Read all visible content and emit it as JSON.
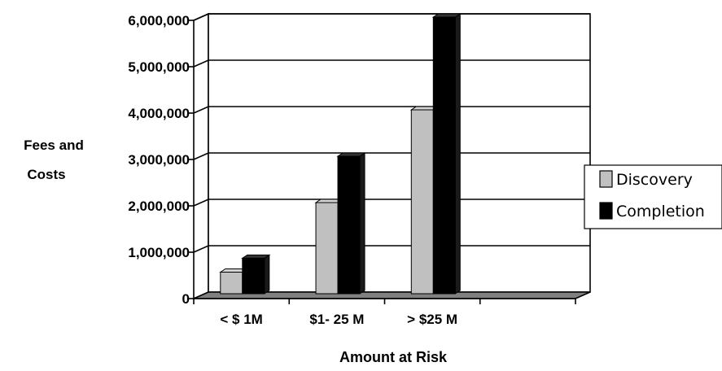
{
  "chart_data": {
    "type": "bar",
    "categories": [
      "< $ 1M",
      "$1- 25 M",
      "> $25 M",
      ""
    ],
    "series": [
      {
        "name": "Discovery",
        "values": [
          500000,
          2000000,
          4000000,
          null
        ],
        "color": "#c0c0c0"
      },
      {
        "name": "Completion",
        "values": [
          800000,
          3000000,
          6000000,
          null
        ],
        "color": "#000000"
      }
    ],
    "ylim": [
      0,
      6000000
    ],
    "yticks": [
      "0",
      "1,000,000",
      "2,000,000",
      "3,000,000",
      "4,000,000",
      "5,000,000",
      "6,000,000"
    ],
    "ytick_values": [
      0,
      1000000,
      2000000,
      3000000,
      4000000,
      5000000,
      6000000
    ],
    "ylabel_lines": [
      "Fees and",
      "Costs"
    ],
    "xlabel": "Amount at Risk",
    "grid": true,
    "style": "3d",
    "legend_position": "right",
    "legend": [
      "Discovery",
      "Completion"
    ]
  }
}
